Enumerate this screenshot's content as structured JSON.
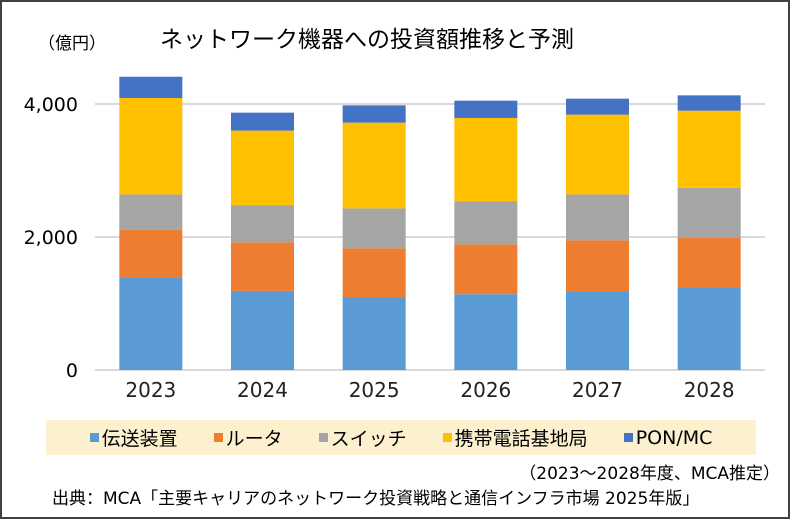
{
  "chart_data": {
    "type": "bar",
    "stacked": true,
    "title": "ネットワーク機器への投資額推移と予測",
    "ylabel": "（億円）",
    "xlabel": "",
    "categories": [
      "2023",
      "2024",
      "2025",
      "2026",
      "2027",
      "2028"
    ],
    "ylim": [
      0,
      4000
    ],
    "yticks": [
      0,
      2000,
      4000
    ],
    "ytick_labels": [
      "0",
      "2,000",
      "4,000"
    ],
    "grid": true,
    "legend_position": "bottom",
    "series": [
      {
        "name": "伝送装置",
        "color": "#5b9bd5",
        "values": [
          1390,
          1190,
          1090,
          1140,
          1180,
          1240
        ]
      },
      {
        "name": "ルータ",
        "color": "#ed7d31",
        "values": [
          720,
          730,
          740,
          750,
          770,
          750
        ]
      },
      {
        "name": "スイッチ",
        "color": "#a5a5a5",
        "values": [
          530,
          560,
          600,
          650,
          690,
          750
        ]
      },
      {
        "name": "携帯電話基地局",
        "color": "#ffc000",
        "values": [
          1450,
          1120,
          1290,
          1250,
          1200,
          1160
        ]
      },
      {
        "name": "PON/MC",
        "color": "#4472c4",
        "values": [
          320,
          270,
          260,
          260,
          240,
          230
        ]
      }
    ]
  },
  "note": "（2023～2028年度、MCA推定）",
  "source": "出典：MCA「主要キャリアのネットワーク投資戦略と通信インフラ市場 2025年版」"
}
